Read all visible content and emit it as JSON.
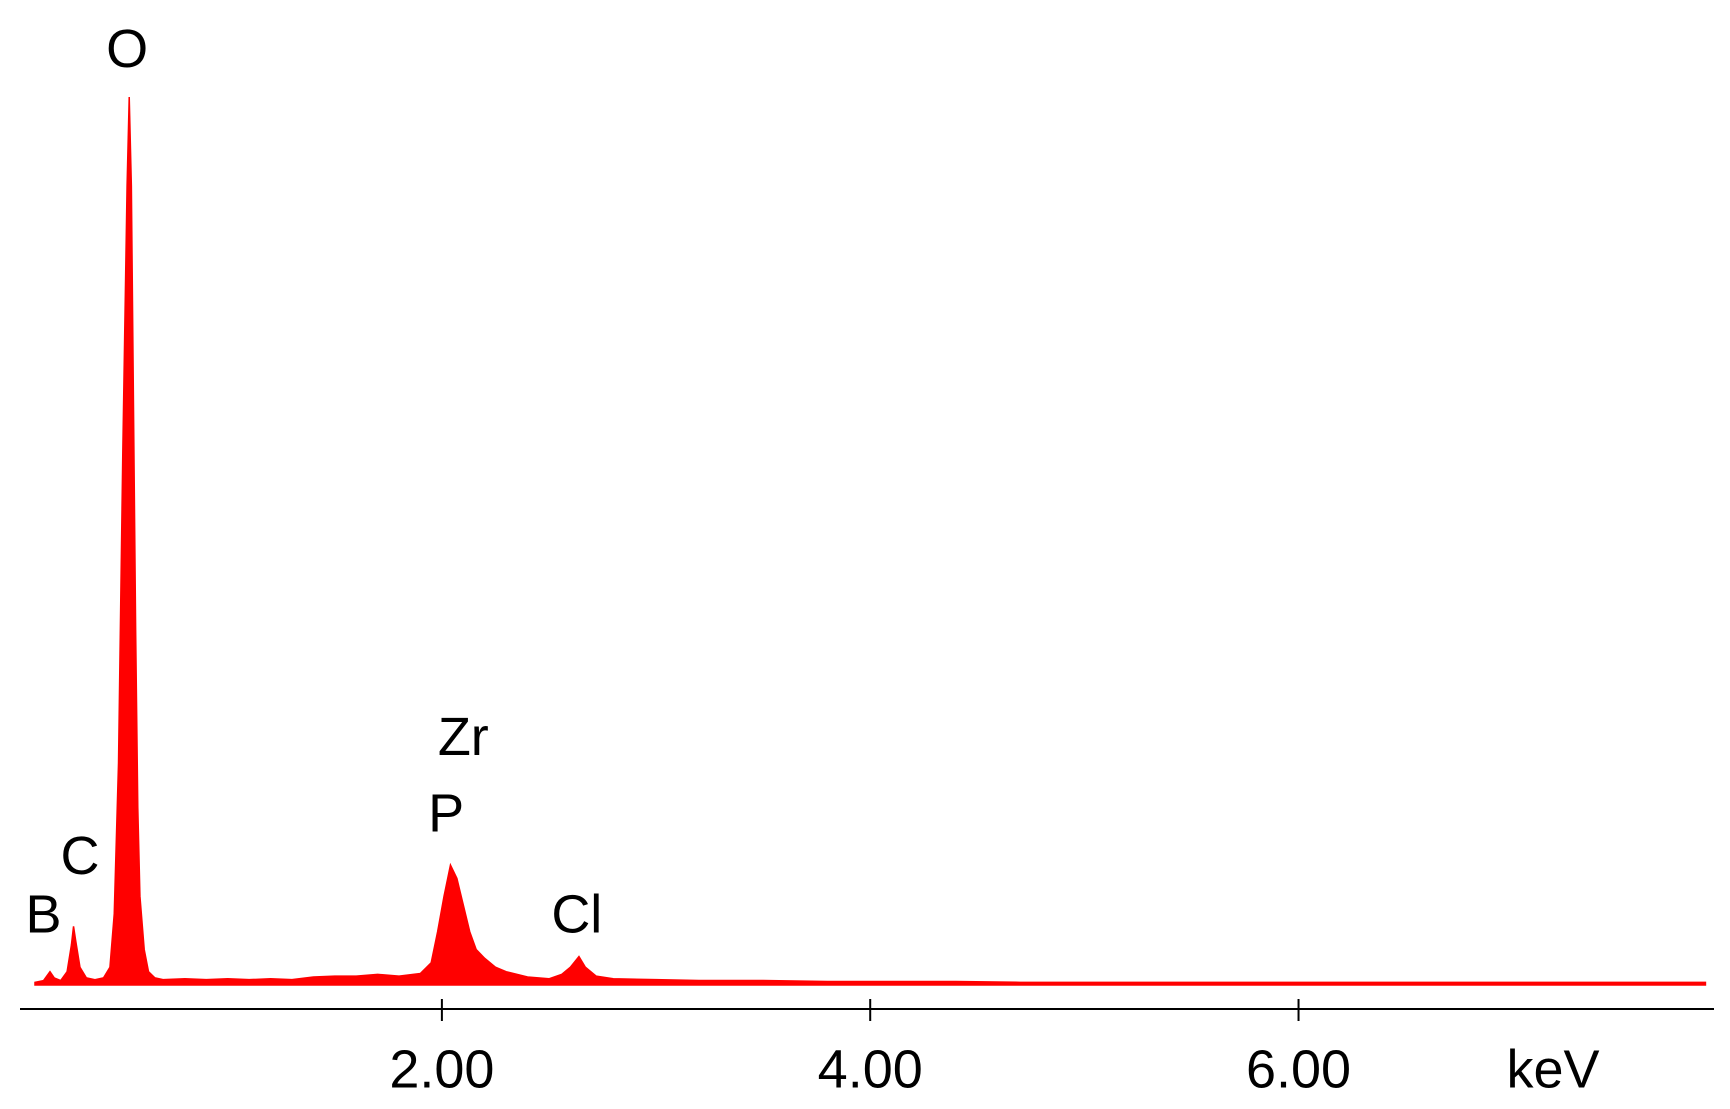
{
  "chart_data": {
    "type": "area",
    "color": "#ff0000",
    "x_label": "keV",
    "xlim": [
      0.03,
      7.94
    ],
    "ylim": [
      0,
      100
    ],
    "xticks": [
      {
        "value": 2,
        "label": "2.00"
      },
      {
        "value": 4,
        "label": "4.00"
      },
      {
        "value": 6,
        "label": "6.00"
      }
    ],
    "x": [
      0.1,
      0.14,
      0.17,
      0.19,
      0.22,
      0.25,
      0.27,
      0.28,
      0.29,
      0.31,
      0.34,
      0.38,
      0.42,
      0.45,
      0.47,
      0.49,
      0.51,
      0.53,
      0.54,
      0.55,
      0.56,
      0.57,
      0.58,
      0.59,
      0.61,
      0.63,
      0.66,
      0.7,
      0.8,
      0.9,
      1.0,
      1.1,
      1.2,
      1.3,
      1.4,
      1.5,
      1.6,
      1.7,
      1.8,
      1.9,
      1.95,
      1.98,
      2.01,
      2.04,
      2.07,
      2.1,
      2.13,
      2.16,
      2.2,
      2.25,
      2.3,
      2.4,
      2.5,
      2.56,
      2.6,
      2.64,
      2.67,
      2.72,
      2.8,
      3.0,
      3.2,
      3.5,
      3.8,
      4.1,
      4.4,
      4.7,
      5.0,
      5.3,
      5.6,
      5.9,
      6.2,
      6.5,
      6.8,
      7.1,
      7.4,
      7.7,
      7.9
    ],
    "values": [
      0.3,
      0.5,
      1.5,
      0.8,
      0.5,
      1.5,
      4.5,
      6.6,
      5,
      2,
      0.8,
      0.6,
      0.8,
      2,
      8,
      25,
      60,
      90,
      100,
      90,
      65,
      40,
      20,
      10,
      4,
      1.5,
      0.8,
      0.6,
      0.7,
      0.6,
      0.7,
      0.6,
      0.7,
      0.6,
      0.9,
      1.0,
      1.0,
      1.2,
      1.0,
      1.3,
      2.5,
      6,
      10,
      13.5,
      12,
      9,
      6,
      4,
      3,
      2,
      1.5,
      0.9,
      0.7,
      1.2,
      2,
      3.2,
      2,
      1,
      0.7,
      0.6,
      0.5,
      0.5,
      0.4,
      0.4,
      0.4,
      0.3,
      0.3,
      0.3,
      0.3,
      0.3,
      0.3,
      0.3,
      0.3,
      0.3,
      0.3,
      0.3,
      0.3
    ],
    "annotations": [
      {
        "text": "B",
        "x": 0.14,
        "y": 7.5
      },
      {
        "text": "C",
        "x": 0.31,
        "y": 14.1
      },
      {
        "text": "O",
        "x": 0.53,
        "y": 105
      },
      {
        "text": "Zr",
        "x": 2.1,
        "y": 27.5
      },
      {
        "text": "P",
        "x": 2.02,
        "y": 18.9
      },
      {
        "text": "Cl",
        "x": 2.63,
        "y": 7.5
      }
    ]
  }
}
